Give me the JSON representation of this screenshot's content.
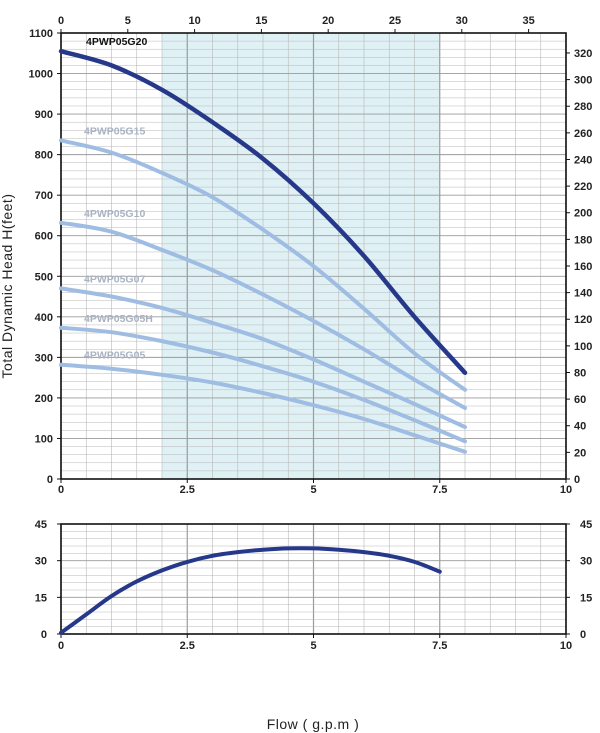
{
  "colors": {
    "dark_series": "#26388a",
    "light_series": "#9fbde3",
    "light_label": "#a9b3c2",
    "dark_label": "#111111",
    "shaded_band": "#dff1f4",
    "grid": "#b8b8b8"
  },
  "xlabel": "Flow ( g.p.m )",
  "ylabel": "Total Dynamic Head H(feet)",
  "chart_data": [
    {
      "type": "line",
      "xlim": [
        0,
        10
      ],
      "ylim": [
        0,
        1100
      ],
      "x_ticks": [
        "0",
        "2.5",
        "5",
        "7.5",
        "10"
      ],
      "y_ticks": [
        "0",
        "100",
        "200",
        "300",
        "400",
        "500",
        "600",
        "700",
        "800",
        "900",
        "1000",
        "1100"
      ],
      "top_axis": {
        "lim": [
          0,
          37.8
        ],
        "ticks": [
          "0",
          "5",
          "10",
          "15",
          "20",
          "25",
          "30",
          "35"
        ]
      },
      "right_axis": {
        "lim": [
          0,
          335
        ],
        "ticks": [
          "0",
          "20",
          "40",
          "60",
          "80",
          "100",
          "120",
          "140",
          "160",
          "180",
          "200",
          "220",
          "240",
          "260",
          "280",
          "300",
          "320"
        ]
      },
      "shaded_region_x": [
        2,
        7.5
      ],
      "grid": true,
      "series": [
        {
          "name": "4PWP05G20",
          "style": "dark",
          "x": [
            0,
            1,
            2,
            3,
            4,
            5,
            6,
            7,
            8
          ],
          "y": [
            1055,
            1020,
            960,
            880,
            790,
            680,
            550,
            400,
            262
          ]
        },
        {
          "name": "4PWP05G15",
          "style": "light",
          "x": [
            0,
            1,
            2,
            3,
            4,
            5,
            6,
            7,
            8
          ],
          "y": [
            835,
            805,
            755,
            695,
            615,
            525,
            420,
            310,
            220
          ]
        },
        {
          "name": "4PWP05G10",
          "style": "light",
          "x": [
            0,
            1,
            2,
            3,
            4,
            5,
            6,
            7,
            8
          ],
          "y": [
            632,
            610,
            565,
            515,
            455,
            390,
            320,
            245,
            175
          ]
        },
        {
          "name": "4PWP05G07",
          "style": "light",
          "x": [
            0,
            1,
            2,
            3,
            4,
            5,
            6,
            7,
            8
          ],
          "y": [
            470,
            450,
            422,
            385,
            345,
            295,
            240,
            185,
            128
          ]
        },
        {
          "name": "4PWP05G05H",
          "style": "light",
          "x": [
            0,
            1,
            2,
            3,
            4,
            5,
            6,
            7,
            8
          ],
          "y": [
            373,
            362,
            340,
            312,
            278,
            240,
            195,
            145,
            93
          ]
        },
        {
          "name": "4PWP05G05",
          "style": "light",
          "x": [
            0,
            1,
            2,
            3,
            4,
            5,
            6,
            7,
            8
          ],
          "y": [
            282,
            272,
            257,
            238,
            212,
            182,
            148,
            108,
            67
          ]
        }
      ]
    },
    {
      "type": "line",
      "xlim": [
        0,
        10
      ],
      "ylim": [
        0,
        45
      ],
      "x_ticks": [
        "0",
        "2.5",
        "5",
        "7.5",
        "10"
      ],
      "y_ticks": [
        "0",
        "15",
        "30",
        "45"
      ],
      "right_ticks": [
        "0",
        "15",
        "30",
        "45"
      ],
      "grid": true,
      "series": [
        {
          "style": "dark",
          "x": [
            0,
            0.5,
            1,
            1.5,
            2,
            2.5,
            3,
            3.5,
            4,
            4.5,
            5,
            5.5,
            6,
            6.5,
            7,
            7.5
          ],
          "y": [
            0.5,
            8,
            15.5,
            21.5,
            26,
            29.5,
            32,
            33.5,
            34.5,
            35,
            35,
            34.5,
            33.5,
            32,
            29.5,
            25.5
          ]
        }
      ]
    }
  ]
}
